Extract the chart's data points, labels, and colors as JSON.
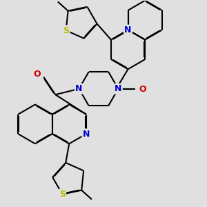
{
  "background_color": "#e0e0e0",
  "bond_color": "#000000",
  "N_color": "#0000cc",
  "O_color": "#cc0000",
  "S_color": "#bbbb00",
  "line_width": 1.5,
  "dbo": 0.025,
  "figsize": [
    3.0,
    3.0
  ],
  "dpi": 100,
  "xlim": [
    -1.0,
    8.5
  ],
  "ylim": [
    -1.0,
    9.5
  ]
}
